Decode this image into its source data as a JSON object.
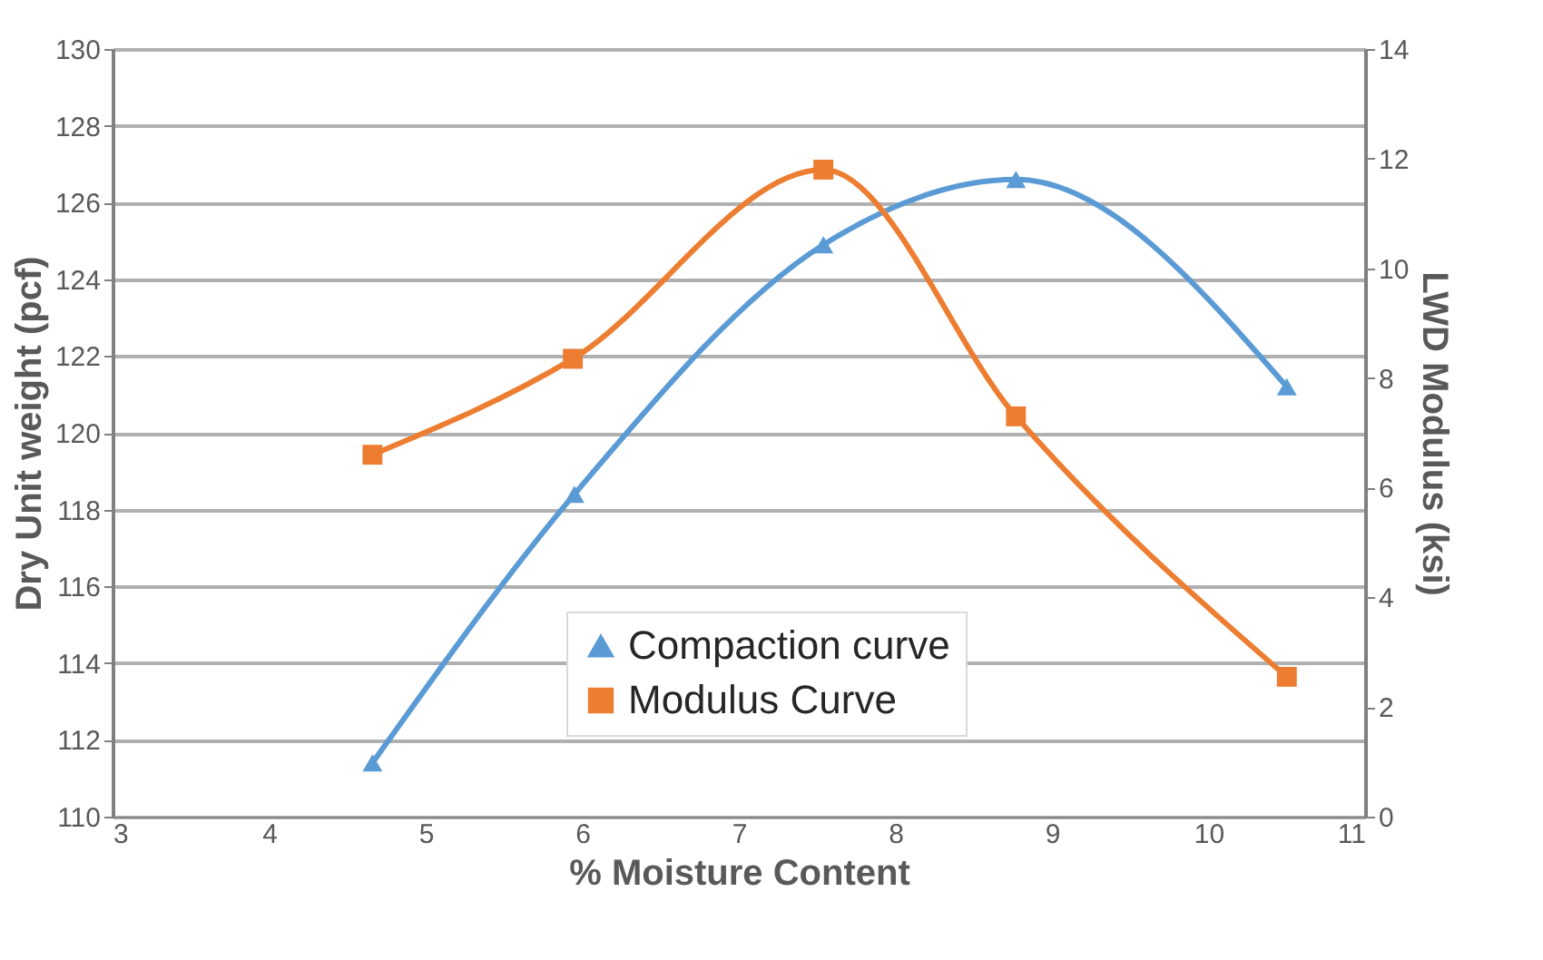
{
  "chart_data": {
    "type": "line",
    "xlabel": "%  Moisture Content",
    "ylabel": "Dry Unit weight  (pcf)",
    "y2label": "LWD Modulus (ksi)",
    "series": [
      {
        "name": "Compaction curve",
        "color": "#5b9bd5",
        "marker": "triangle",
        "x": [
          4.66,
          5.95,
          7.54,
          8.77,
          10.5
        ],
        "values": [
          111.4,
          118.4,
          124.9,
          126.6,
          121.2
        ]
      },
      {
        "name": "Modulus Curve",
        "color": "#ed7d31",
        "marker": "square",
        "axis": "y2",
        "x": [
          4.66,
          5.94,
          7.54,
          8.77,
          10.5
        ],
        "values": [
          6.6,
          8.35,
          11.8,
          7.3,
          2.55
        ]
      }
    ],
    "xlim": [
      3,
      11
    ],
    "xticks": [
      3,
      4,
      5,
      6,
      7,
      8,
      9,
      10,
      11
    ],
    "ylim": [
      110,
      130
    ],
    "yticks": [
      110,
      112,
      114,
      116,
      118,
      120,
      122,
      124,
      126,
      128,
      130
    ],
    "y2lim": [
      0,
      14
    ],
    "y2ticks": [
      0,
      2,
      4,
      6,
      8,
      10,
      12,
      14
    ],
    "grid": "y",
    "legend": "bottom",
    "line_style": "solid"
  }
}
